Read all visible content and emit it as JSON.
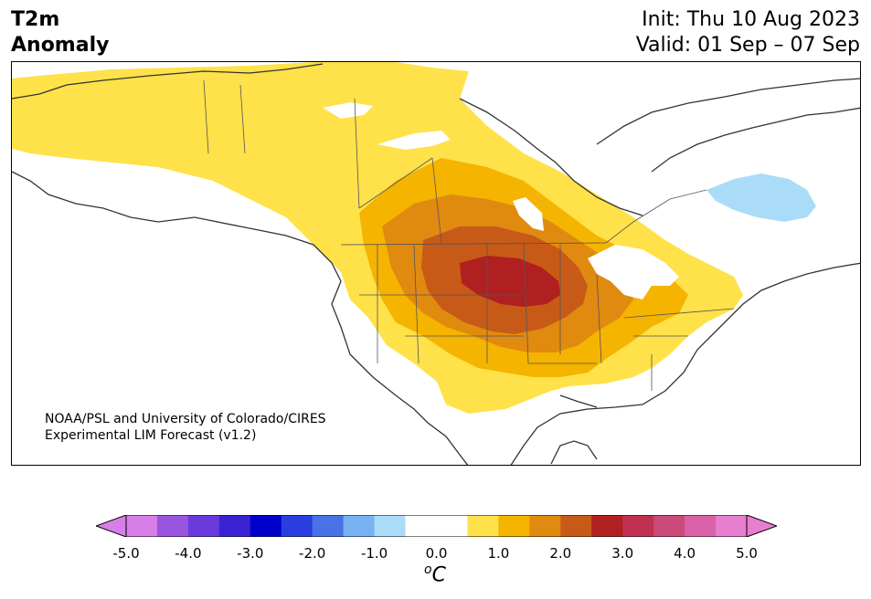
{
  "title": {
    "line1": "T2m",
    "line2": "Anomaly"
  },
  "header_right": {
    "init": "Init: Thu 10 Aug 2023",
    "valid": "Valid: 01 Sep – 07 Sep"
  },
  "credit": {
    "line1": "NOAA/PSL and University of Colorado/CIRES",
    "line2": "Experimental LIM Forecast (v1.2)"
  },
  "colorbar": {
    "unit_main": "C",
    "unit_sup": "o",
    "tick_labels": [
      "-5.0",
      "-4.0",
      "-3.0",
      "-2.0",
      "-1.0",
      "0.0",
      "1.0",
      "2.0",
      "3.0",
      "4.0",
      "5.0"
    ],
    "under_color": "#d87ee8",
    "over_color": "#e87ed0",
    "colors": [
      "#d87ee8",
      "#9a55e0",
      "#6a3adc",
      "#3a22d2",
      "#0000cc",
      "#2a3ee0",
      "#4a72e8",
      "#78b2f2",
      "#aadcf8",
      "#ffffff",
      "#ffffff",
      "#ffe14a",
      "#f4b400",
      "#e08a10",
      "#c85a18",
      "#b02020",
      "#c03050",
      "#cc4a7a",
      "#da62a8",
      "#e87ed0"
    ]
  },
  "map": {
    "region": "North America",
    "anomaly_colors": {
      "plus_0_5": "#ffe14a",
      "plus_1_0": "#f4b400",
      "plus_1_5": "#e08a10",
      "plus_2_0": "#c85a18",
      "plus_2_5": "#b02020",
      "minus_0_5": "#aadcf8"
    }
  }
}
